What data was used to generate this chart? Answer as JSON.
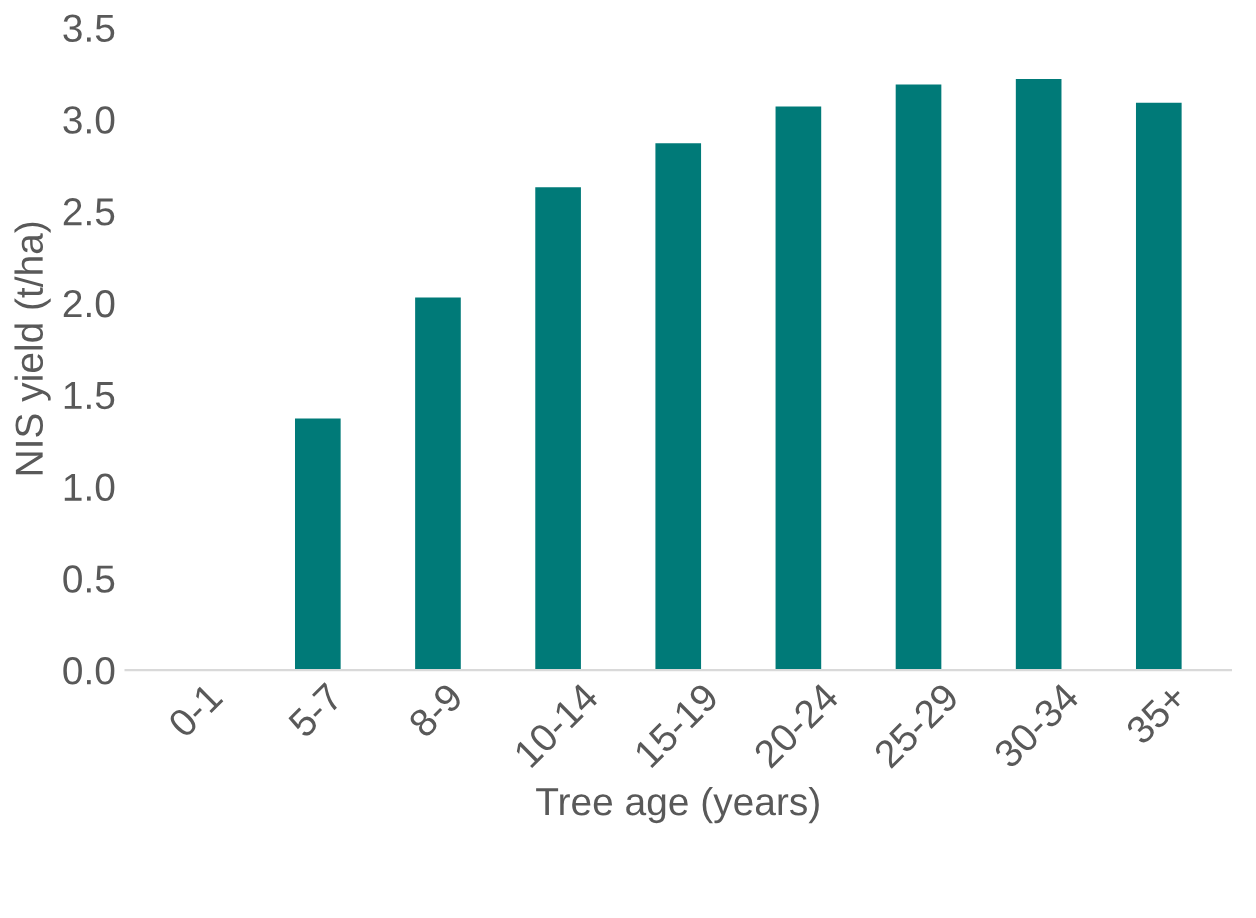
{
  "chart_data": {
    "type": "bar",
    "xlabel": "Tree age (years)",
    "ylabel": "NIS yield (t/ha)",
    "categories": [
      "0-1",
      "5-7",
      "8-9",
      "10-14",
      "15-19",
      "20-24",
      "25-29",
      "30-34",
      "35+"
    ],
    "values": [
      null,
      1.37,
      2.03,
      2.63,
      2.87,
      3.07,
      3.19,
      3.22,
      3.09
    ],
    "color": "#007a78",
    "ylim": [
      0,
      3.5
    ],
    "yticks": [
      {
        "value": 0,
        "label": "0.0"
      },
      {
        "value": 0.5,
        "label": "0.5"
      },
      {
        "value": 1,
        "label": "1.0"
      },
      {
        "value": 1.5,
        "label": "1.5"
      },
      {
        "value": 2,
        "label": "2.0"
      },
      {
        "value": 2.5,
        "label": "2.5"
      },
      {
        "value": 3,
        "label": "3.0"
      },
      {
        "value": 3.5,
        "label": "3.5"
      }
    ],
    "grid": false
  }
}
